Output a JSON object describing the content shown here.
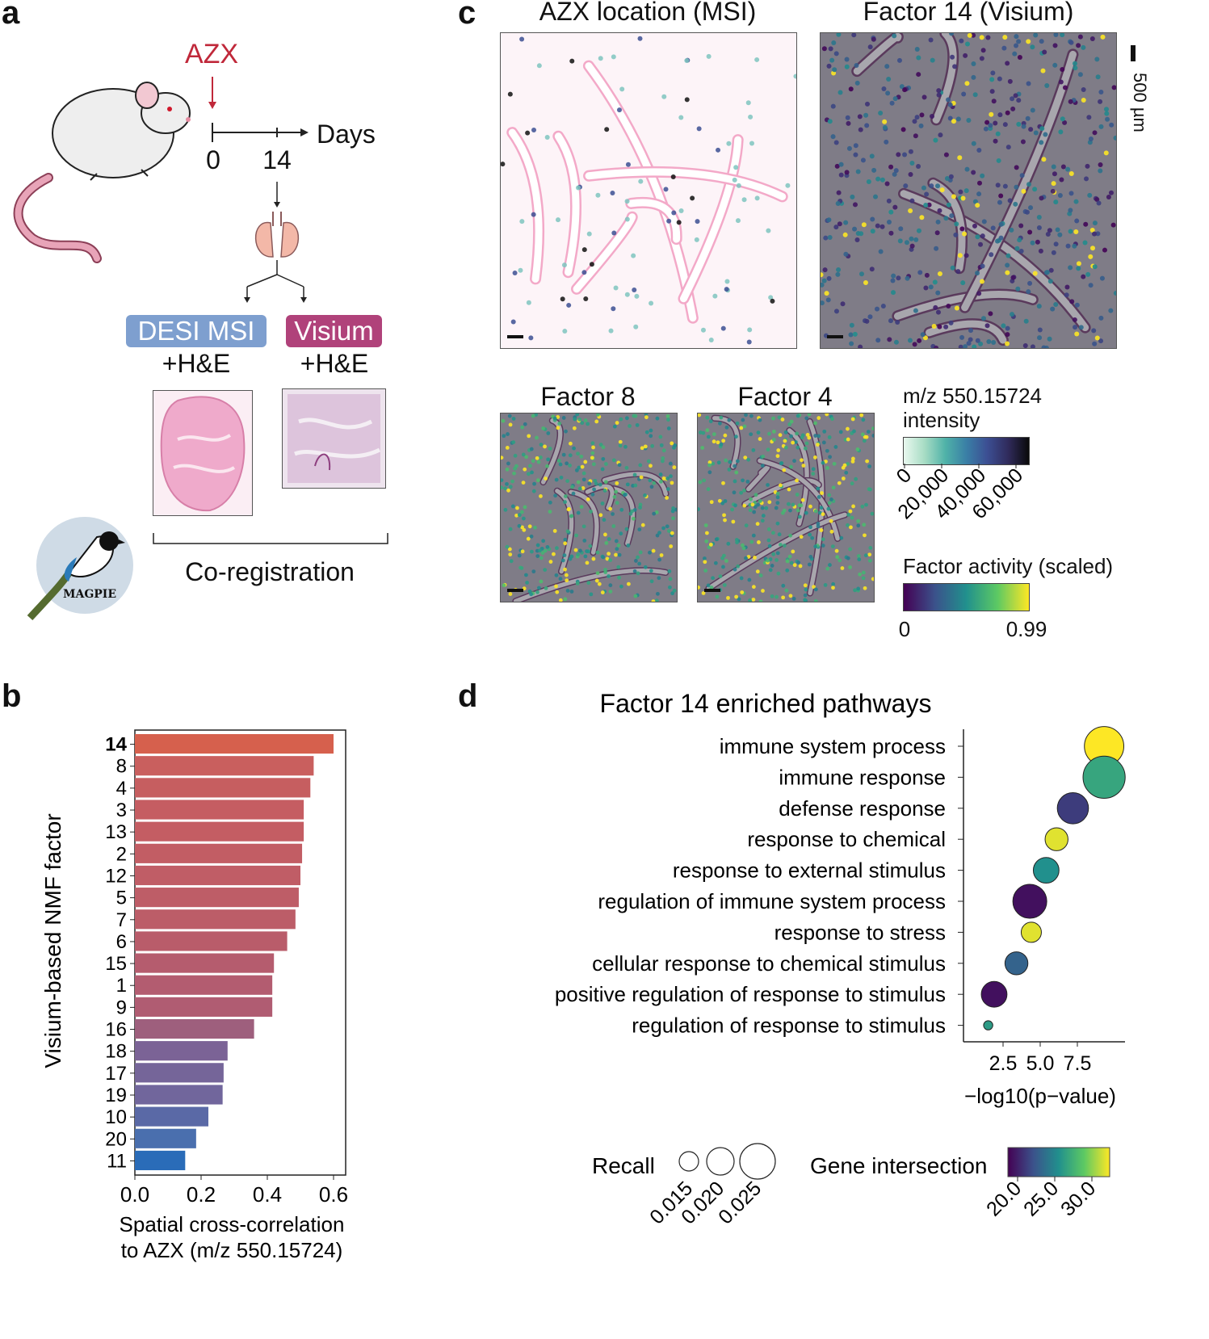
{
  "panel_letters": {
    "a": "a",
    "b": "b",
    "c": "c",
    "d": "d"
  },
  "panel_a": {
    "drug": "AZX",
    "timeline_label": "Days",
    "day_start": "0",
    "day_end": "14",
    "left_method": "DESI MSI",
    "left_stain": "+H&E",
    "right_method": "Visium",
    "right_stain": "+H&E",
    "coregistration": "Co-registration",
    "logo_text": "MAGPIE",
    "colors": {
      "drug": "#c0283a",
      "desi": "#7e9fcf",
      "visium": "#b0427a"
    }
  },
  "panel_c": {
    "titles": {
      "msi": "AZX location (MSI)",
      "f14": "Factor 14 (Visium)",
      "f8": "Factor 8",
      "f4": "Factor 4"
    },
    "scale_label": "500 µm",
    "msi_colorbar": {
      "title_line1": "m/z 550.15724",
      "title_line2": "intensity",
      "ticks": [
        "0",
        "20,000",
        "40,000",
        "60,000"
      ]
    },
    "factor_colorbar": {
      "title": "Factor activity (scaled)",
      "min": "0",
      "max": "0.99"
    }
  },
  "chart_data": [
    {
      "type": "bar",
      "orientation": "horizontal",
      "ylabel": "Visium-based NMF factor",
      "xlabel_line1": "Spatial cross-correlation",
      "xlabel_line2": "to AZX (m/z 550.15724)",
      "xlim": [
        0.0,
        0.6
      ],
      "xticks": [
        "0.0",
        "0.2",
        "0.4",
        "0.6"
      ],
      "categories": [
        "14",
        "8",
        "4",
        "3",
        "13",
        "2",
        "12",
        "5",
        "7",
        "6",
        "15",
        "1",
        "9",
        "16",
        "18",
        "17",
        "19",
        "10",
        "20",
        "11"
      ],
      "values": [
        0.6,
        0.54,
        0.53,
        0.51,
        0.51,
        0.505,
        0.5,
        0.495,
        0.485,
        0.46,
        0.42,
        0.415,
        0.415,
        0.36,
        0.28,
        0.268,
        0.265,
        0.222,
        0.185,
        0.152
      ],
      "colors": [
        "#d6604d",
        "#c95f5e",
        "#c65e60",
        "#c55d62",
        "#c45d63",
        "#c25d64",
        "#c05d66",
        "#be5d67",
        "#bc5d68",
        "#b95c6a",
        "#b55c6e",
        "#b35c70",
        "#b05c72",
        "#9e5f7d",
        "#7b6396",
        "#756599",
        "#71669c",
        "#5a69a6",
        "#4a6fae",
        "#2a6cb8"
      ]
    },
    {
      "type": "scatter",
      "title": "Factor 14 enriched pathways",
      "xlabel": "−log10(p−value)",
      "xticks": [
        "2.5",
        "5.0",
        "7.5"
      ],
      "categories": [
        "immune system process",
        "immune response",
        "defense response",
        "response to chemical",
        "response to external stimulus",
        "regulation of immune system process",
        "response to stress",
        "cellular response to chemical stimulus",
        "positive regulation of response to stimulus",
        "regulation of response to stimulus"
      ],
      "x": [
        9.3,
        9.3,
        7.2,
        6.1,
        5.4,
        4.3,
        4.4,
        3.4,
        1.9,
        1.5
      ],
      "recall": [
        0.024,
        0.025,
        0.021,
        0.018,
        0.019,
        0.022,
        0.017,
        0.018,
        0.019,
        0.013
      ],
      "gene_intersection": [
        31,
        26.5,
        22,
        30.5,
        25.5,
        20.5,
        30.5,
        23.5,
        20.5,
        26
      ],
      "legend_recall": {
        "title": "Recall",
        "labels": [
          "0.015",
          "0.020",
          "0.025"
        ]
      },
      "legend_gene": {
        "title": "Gene intersection",
        "labels": [
          "20.0",
          "25.0",
          "30.0"
        ]
      }
    }
  ]
}
